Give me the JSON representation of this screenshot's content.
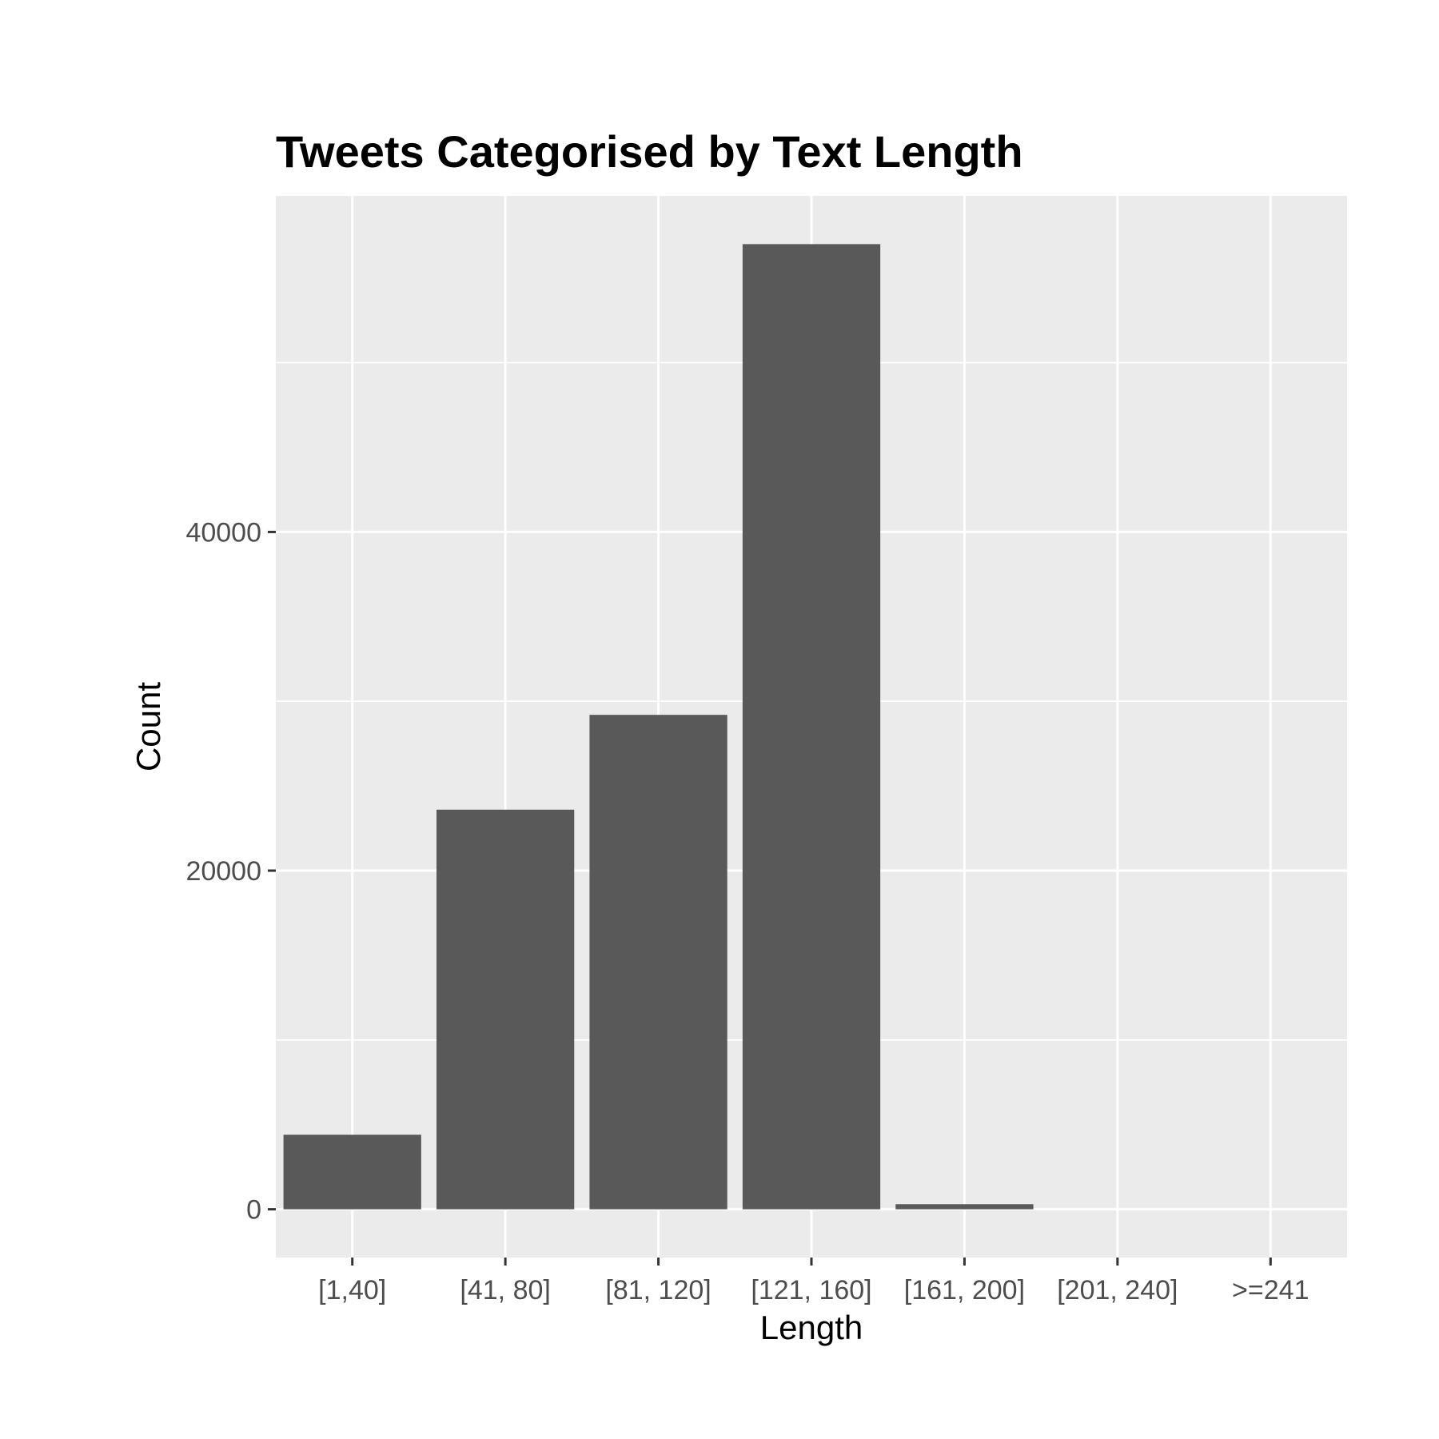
{
  "chart_data": {
    "type": "bar",
    "title": "Tweets Categorised by Text Length",
    "xlabel": "Length",
    "ylabel": "Count",
    "categories": [
      "[1,40]",
      "[41, 80]",
      "[81, 120]",
      "[121, 160]",
      "[161, 200]",
      "[201, 240]",
      ">=241"
    ],
    "values": [
      4400,
      23600,
      29200,
      57000,
      300,
      0,
      0
    ],
    "y_ticks": [
      0,
      20000,
      40000
    ],
    "y_tick_labels": [
      "0",
      "20000",
      "40000"
    ],
    "ylim": [
      -2850,
      59850
    ],
    "grid": true,
    "legend": "none",
    "colors": {
      "bar": "#595959",
      "panel": "#ebebeb",
      "grid": "#ffffff",
      "axis_text": "#4d4d4d",
      "tick": "#333333"
    }
  }
}
